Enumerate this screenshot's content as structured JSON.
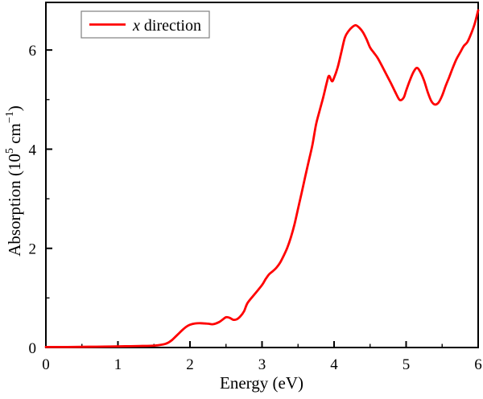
{
  "figure": {
    "xlabel": "Energy (eV)",
    "ylabel_parts": [
      {
        "t": "Absorption (10",
        "sup": false
      },
      {
        "t": "5",
        "sup": true
      },
      {
        "t": " cm",
        "sup": false
      },
      {
        "t": "−1",
        "sup": true
      },
      {
        "t": ")",
        "sup": false
      }
    ],
    "legend": {
      "italic_label": "x",
      "label_rest": " direction"
    }
  },
  "colors": {
    "curve": "#ff0000",
    "axis": "#000000",
    "legend_border": "#808080",
    "background": "#ffffff"
  },
  "chart_data": {
    "type": "line",
    "title": "",
    "xlabel": "Energy (eV)",
    "ylabel": "Absorption (10^5 cm^-1)",
    "xlim": [
      0,
      6
    ],
    "ylim": [
      0,
      6.96
    ],
    "grid": false,
    "legend_position": "top-left",
    "x_major_ticks": [
      0,
      1,
      2,
      3,
      4,
      5,
      6
    ],
    "x_tick_labels": [
      "0",
      "1",
      "2",
      "3",
      "4",
      "5",
      "6"
    ],
    "x_minor_ticks": [
      0.5,
      1.5,
      2.5,
      3.5,
      4.5,
      5.5
    ],
    "y_major_ticks": [
      0,
      2,
      4,
      6
    ],
    "y_tick_labels": [
      "0",
      "2",
      "4",
      "6"
    ],
    "y_minor_ticks": [
      1,
      3,
      5
    ],
    "series": [
      {
        "name": "x direction",
        "color": "#ff0000",
        "points": [
          [
            0.0,
            0.01
          ],
          [
            0.3,
            0.01
          ],
          [
            0.6,
            0.015
          ],
          [
            0.9,
            0.02
          ],
          [
            1.1,
            0.025
          ],
          [
            1.3,
            0.03
          ],
          [
            1.45,
            0.035
          ],
          [
            1.55,
            0.045
          ],
          [
            1.65,
            0.07
          ],
          [
            1.7,
            0.1
          ],
          [
            1.75,
            0.15
          ],
          [
            1.8,
            0.22
          ],
          [
            1.85,
            0.29
          ],
          [
            1.9,
            0.36
          ],
          [
            1.95,
            0.42
          ],
          [
            2.0,
            0.46
          ],
          [
            2.07,
            0.485
          ],
          [
            2.15,
            0.49
          ],
          [
            2.25,
            0.48
          ],
          [
            2.32,
            0.47
          ],
          [
            2.4,
            0.51
          ],
          [
            2.45,
            0.56
          ],
          [
            2.5,
            0.61
          ],
          [
            2.55,
            0.6
          ],
          [
            2.6,
            0.56
          ],
          [
            2.65,
            0.57
          ],
          [
            2.7,
            0.63
          ],
          [
            2.75,
            0.73
          ],
          [
            2.8,
            0.9
          ],
          [
            2.9,
            1.08
          ],
          [
            3.0,
            1.26
          ],
          [
            3.05,
            1.38
          ],
          [
            3.1,
            1.48
          ],
          [
            3.15,
            1.54
          ],
          [
            3.2,
            1.61
          ],
          [
            3.25,
            1.71
          ],
          [
            3.3,
            1.85
          ],
          [
            3.35,
            2.01
          ],
          [
            3.4,
            2.22
          ],
          [
            3.45,
            2.48
          ],
          [
            3.5,
            2.8
          ],
          [
            3.55,
            3.12
          ],
          [
            3.6,
            3.45
          ],
          [
            3.65,
            3.77
          ],
          [
            3.7,
            4.09
          ],
          [
            3.75,
            4.5
          ],
          [
            3.8,
            4.78
          ],
          [
            3.85,
            5.05
          ],
          [
            3.9,
            5.35
          ],
          [
            3.93,
            5.48
          ],
          [
            3.97,
            5.37
          ],
          [
            4.0,
            5.44
          ],
          [
            4.05,
            5.65
          ],
          [
            4.1,
            5.95
          ],
          [
            4.15,
            6.25
          ],
          [
            4.2,
            6.38
          ],
          [
            4.25,
            6.46
          ],
          [
            4.3,
            6.5
          ],
          [
            4.35,
            6.45
          ],
          [
            4.4,
            6.36
          ],
          [
            4.45,
            6.22
          ],
          [
            4.5,
            6.05
          ],
          [
            4.55,
            5.95
          ],
          [
            4.6,
            5.85
          ],
          [
            4.65,
            5.72
          ],
          [
            4.7,
            5.58
          ],
          [
            4.75,
            5.44
          ],
          [
            4.8,
            5.3
          ],
          [
            4.85,
            5.15
          ],
          [
            4.9,
            5.01
          ],
          [
            4.93,
            4.99
          ],
          [
            4.97,
            5.05
          ],
          [
            5.0,
            5.18
          ],
          [
            5.05,
            5.38
          ],
          [
            5.1,
            5.55
          ],
          [
            5.15,
            5.64
          ],
          [
            5.2,
            5.55
          ],
          [
            5.25,
            5.38
          ],
          [
            5.3,
            5.15
          ],
          [
            5.35,
            4.97
          ],
          [
            5.4,
            4.9
          ],
          [
            5.45,
            4.94
          ],
          [
            5.5,
            5.08
          ],
          [
            5.55,
            5.28
          ],
          [
            5.6,
            5.46
          ],
          [
            5.65,
            5.65
          ],
          [
            5.7,
            5.82
          ],
          [
            5.75,
            5.95
          ],
          [
            5.8,
            6.08
          ],
          [
            5.85,
            6.16
          ],
          [
            5.9,
            6.32
          ],
          [
            5.95,
            6.52
          ],
          [
            6.0,
            6.8
          ]
        ]
      }
    ]
  }
}
